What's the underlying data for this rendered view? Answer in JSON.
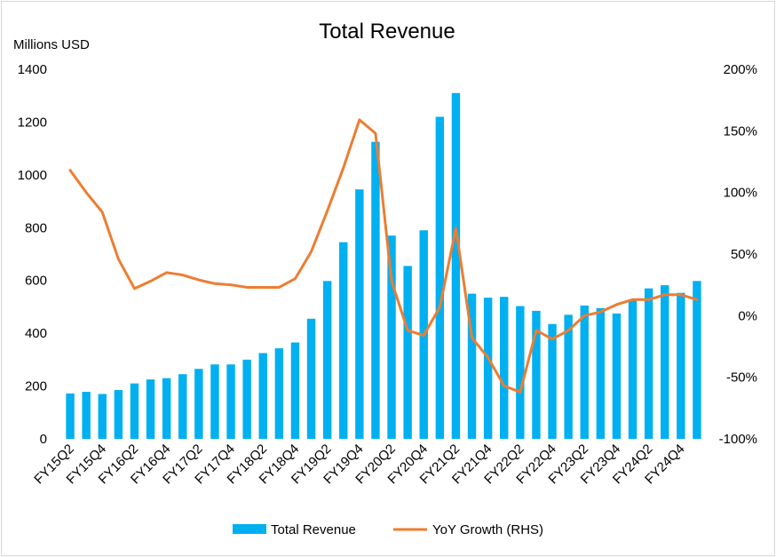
{
  "chart_data": {
    "type": "bar+line",
    "title": "Total Revenue",
    "ylabel": "Millions USD",
    "y2label": "",
    "ylim": [
      0,
      1400
    ],
    "yticks": [
      0,
      200,
      400,
      600,
      800,
      1000,
      1200,
      1400
    ],
    "y2lim": [
      -100,
      200
    ],
    "y2ticks": [
      -100,
      -50,
      0,
      50,
      100,
      150,
      200
    ],
    "y2tick_labels": [
      "-100%",
      "-50%",
      "0%",
      "50%",
      "100%",
      "150%",
      "200%"
    ],
    "categories": [
      "FY15Q2",
      "FY15Q3",
      "FY15Q4",
      "FY16Q1",
      "FY16Q2",
      "FY16Q3",
      "FY16Q4",
      "FY17Q1",
      "FY17Q2",
      "FY17Q3",
      "FY17Q4",
      "FY18Q1",
      "FY18Q2",
      "FY18Q3",
      "FY18Q4",
      "FY19Q1",
      "FY19Q2",
      "FY19Q3",
      "FY19Q4",
      "FY20Q1",
      "FY20Q2",
      "FY20Q3",
      "FY20Q4",
      "FY21Q1",
      "FY21Q2",
      "FY21Q3",
      "FY21Q4",
      "FY22Q1",
      "FY22Q2",
      "FY22Q3",
      "FY22Q4",
      "FY23Q1",
      "FY23Q2",
      "FY23Q3",
      "FY23Q4",
      "FY24Q1",
      "FY24Q2",
      "FY24Q3",
      "FY24Q4",
      "FY25Q1"
    ],
    "x_tick_labels": [
      "FY15Q2",
      "FY15Q4",
      "FY16Q2",
      "FY16Q4",
      "FY17Q2",
      "FY17Q4",
      "FY18Q2",
      "FY18Q4",
      "FY19Q2",
      "FY19Q4",
      "FY20Q2",
      "FY20Q4",
      "FY21Q2",
      "FY21Q4",
      "FY22Q2",
      "FY22Q4",
      "FY23Q2",
      "FY23Q4",
      "FY24Q2",
      "FY24Q4"
    ],
    "series": [
      {
        "name": "Total Revenue",
        "type": "bar",
        "axis": "left",
        "color": "#00b0f0",
        "values": [
          172,
          178,
          170,
          185,
          210,
          225,
          230,
          245,
          265,
          282,
          282,
          300,
          325,
          343,
          365,
          455,
          598,
          745,
          945,
          1125,
          770,
          655,
          790,
          1220,
          1310,
          550,
          535,
          538,
          503,
          485,
          435,
          470,
          505,
          495,
          475,
          525,
          570,
          582,
          553,
          598
        ]
      },
      {
        "name": "YoY Growth (RHS)",
        "type": "line",
        "axis": "right",
        "color": "#ed7d31",
        "values": [
          118,
          100,
          84,
          46,
          22,
          28,
          35,
          33,
          29,
          26,
          25,
          23,
          23,
          23,
          30,
          52,
          85,
          120,
          159,
          148,
          28,
          -12,
          -16,
          7,
          71,
          -18,
          -34,
          -57,
          -62,
          -12,
          -19,
          -12,
          0,
          3,
          9,
          13,
          13,
          17,
          17,
          13
        ]
      }
    ],
    "legend": "bottom"
  }
}
